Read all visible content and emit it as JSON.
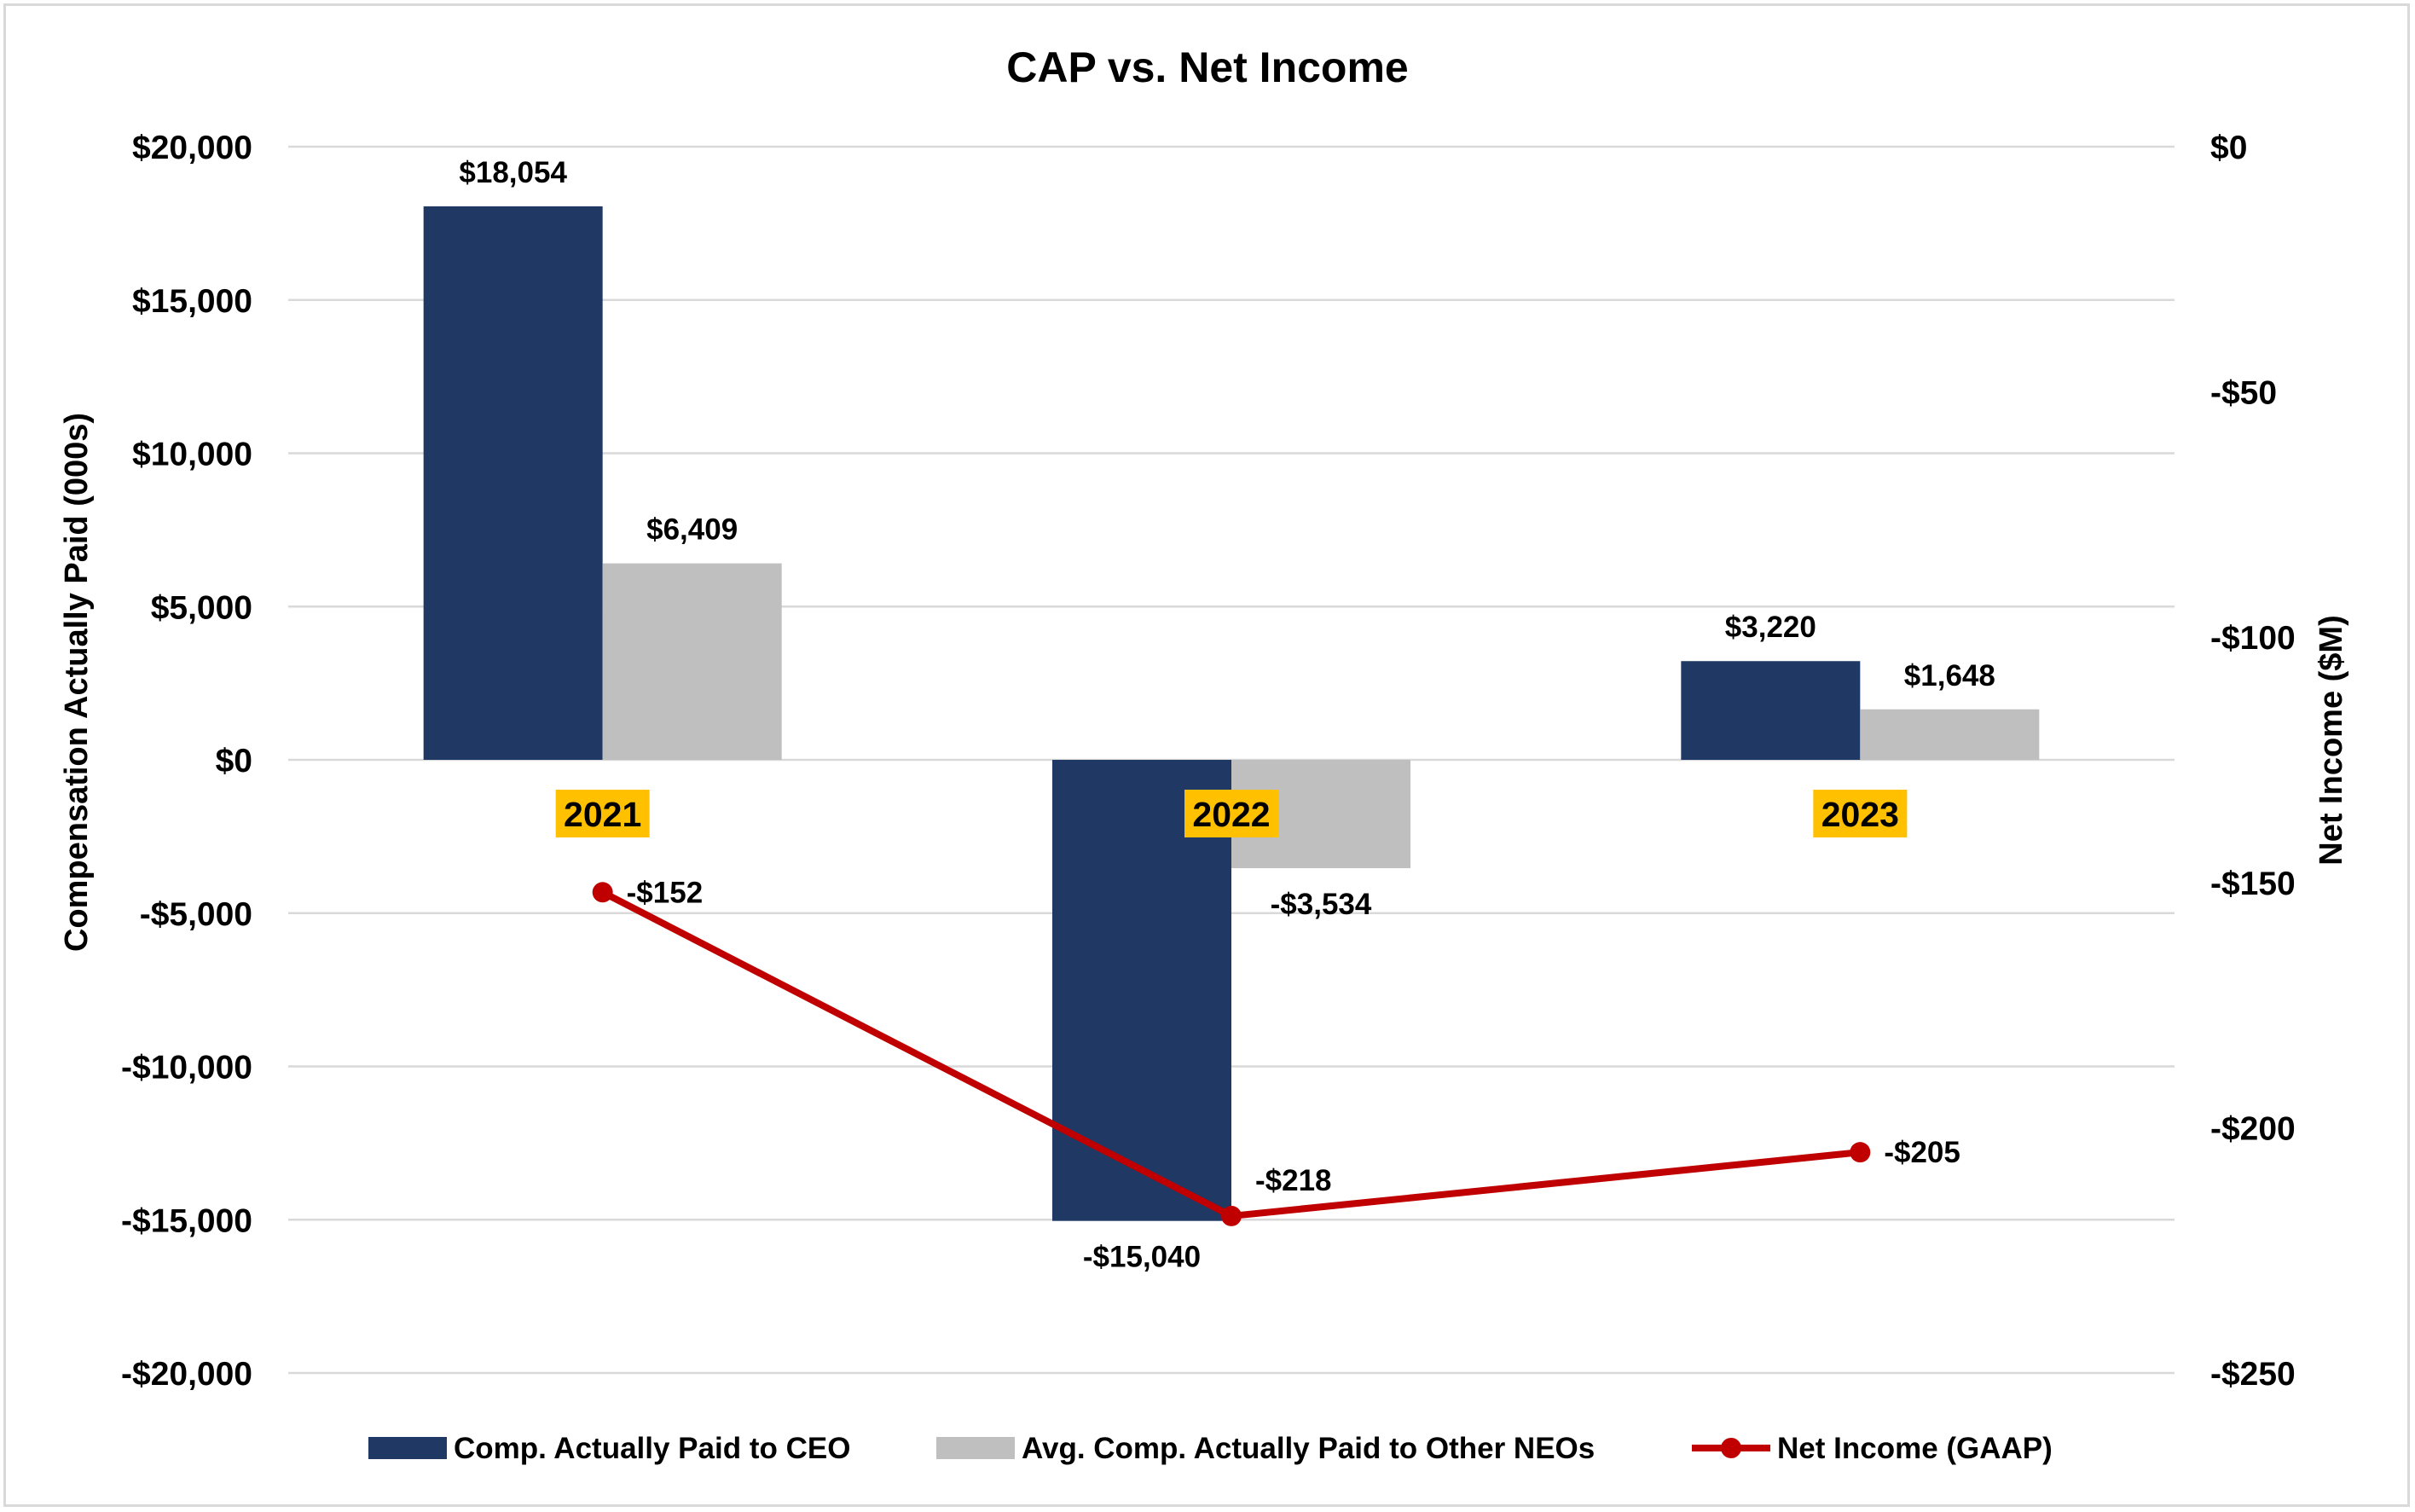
{
  "chart_data": {
    "type": "bar",
    "title": "CAP vs. Net Income",
    "categories": [
      "2021",
      "2022",
      "2023"
    ],
    "ylabel": "Compensation Actually Paid (000s)",
    "ylim": [
      -20000,
      20000
    ],
    "y_ticks": [
      20000,
      15000,
      10000,
      5000,
      0,
      -5000,
      -10000,
      -15000,
      -20000
    ],
    "y_tick_labels": [
      "$20,000",
      "$15,000",
      "$10,000",
      "$5,000",
      "$0",
      "-$5,000",
      "-$10,000",
      "-$15,000",
      "-$20,000"
    ],
    "y2label": "Net Income ($M)",
    "y2lim": [
      -250,
      0
    ],
    "y2_ticks": [
      0,
      -50,
      -100,
      -150,
      -200,
      -250
    ],
    "y2_tick_labels": [
      "$0",
      "-$50",
      "-$100",
      "-$150",
      "-$200",
      "-$250"
    ],
    "grid": true,
    "legend_position": "bottom",
    "category_highlight_color": "#ffc000",
    "series": [
      {
        "name": "Comp. Actually Paid to CEO",
        "kind": "bar",
        "axis": "left",
        "color": "#1f3864",
        "values": [
          18054,
          -15040,
          3220
        ],
        "labels": [
          "$18,054",
          "-$15,040",
          "$3,220"
        ]
      },
      {
        "name": "Avg. Comp. Actually Paid to Other NEOs",
        "kind": "bar",
        "axis": "left",
        "color": "#bfbfbf",
        "values": [
          6409,
          -3534,
          1648
        ],
        "labels": [
          "$6,409",
          "-$3,534",
          "$1,648"
        ]
      },
      {
        "name": "Net Income (GAAP)",
        "kind": "line",
        "axis": "right",
        "color": "#c00000",
        "values": [
          -152,
          -218,
          -205
        ],
        "labels": [
          "-$152",
          "-$218",
          "-$205"
        ]
      }
    ]
  }
}
